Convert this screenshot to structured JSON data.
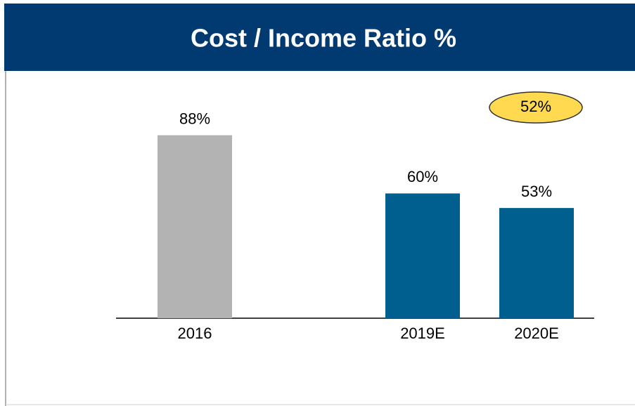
{
  "chart_data": {
    "type": "bar",
    "title": "Cost / Income Ratio %",
    "categories": [
      "2016",
      null,
      "2019E",
      "2020E"
    ],
    "values": [
      88,
      null,
      60,
      53
    ],
    "value_labels": [
      "88%",
      null,
      "60%",
      "53%"
    ],
    "colors": [
      "#b3b3b3",
      null,
      "#005f8e",
      "#005f8e"
    ],
    "ylim": [
      0,
      100
    ],
    "annotation": "52%"
  }
}
